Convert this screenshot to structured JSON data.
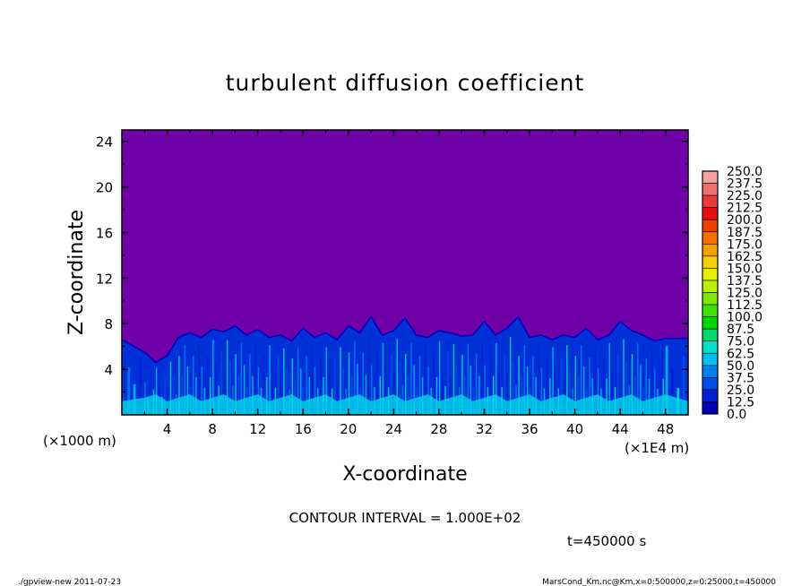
{
  "chart_data": {
    "type": "heatmap",
    "title": "turbulent diffusion coefficient",
    "xlabel": "X-coordinate",
    "ylabel": "Z-coordinate",
    "x_unit": "(×1E4 m)",
    "y_unit": "(×1000 m)",
    "xlim": [
      0,
      50
    ],
    "ylim": [
      0,
      25
    ],
    "x_ticks": [
      4,
      8,
      12,
      16,
      20,
      24,
      28,
      32,
      36,
      40,
      44,
      48
    ],
    "y_ticks": [
      4,
      8,
      12,
      16,
      20,
      24
    ],
    "contour_note": "CONTOUR INTERVAL = 1.000E+02",
    "time_label": "t=450000 s",
    "colorbar": {
      "levels": [
        "250.0",
        "237.5",
        "225.0",
        "212.5",
        "200.0",
        "187.5",
        "175.0",
        "162.5",
        "150.0",
        "137.5",
        "125.0",
        "112.5",
        "100.0",
        "87.5",
        "75.0",
        "62.5",
        "50.0",
        "37.5",
        "25.0",
        "12.5",
        "0.0"
      ],
      "colors": [
        "#f4a0a0",
        "#f07070",
        "#e83c3c",
        "#e41010",
        "#f04000",
        "#f47000",
        "#f4a000",
        "#f4d000",
        "#e8f000",
        "#b8f000",
        "#80e800",
        "#40e000",
        "#00d800",
        "#00d870",
        "#00e0c8",
        "#00c0f0",
        "#0080f0",
        "#0050e8",
        "#0020d8",
        "#0000b8",
        "#7000a8"
      ]
    },
    "background_value_color": "#7000a8",
    "boundary_layer_top": [
      [
        0,
        6.6
      ],
      [
        2,
        5.5
      ],
      [
        3,
        4.6
      ],
      [
        4,
        5.2
      ],
      [
        5,
        6.8
      ],
      [
        6,
        7.2
      ],
      [
        7,
        6.8
      ],
      [
        8,
        7.5
      ],
      [
        9,
        7.3
      ],
      [
        10,
        7.8
      ],
      [
        11,
        7.0
      ],
      [
        12,
        7.5
      ],
      [
        13,
        6.8
      ],
      [
        14,
        7.0
      ],
      [
        15,
        6.5
      ],
      [
        16,
        7.6
      ],
      [
        17,
        6.8
      ],
      [
        18,
        7.2
      ],
      [
        19,
        6.6
      ],
      [
        20,
        7.8
      ],
      [
        21,
        7.2
      ],
      [
        22,
        8.6
      ],
      [
        23,
        7.0
      ],
      [
        24,
        7.4
      ],
      [
        25,
        8.5
      ],
      [
        26,
        7.0
      ],
      [
        27,
        6.8
      ],
      [
        28,
        7.4
      ],
      [
        29,
        7.2
      ],
      [
        30,
        6.9
      ],
      [
        31,
        7.0
      ],
      [
        32,
        8.2
      ],
      [
        33,
        7.0
      ],
      [
        34,
        7.6
      ],
      [
        35,
        8.6
      ],
      [
        36,
        6.8
      ],
      [
        37,
        7.0
      ],
      [
        38,
        6.6
      ],
      [
        39,
        7.0
      ],
      [
        40,
        6.8
      ],
      [
        41,
        7.6
      ],
      [
        42,
        6.6
      ],
      [
        43,
        7.0
      ],
      [
        44,
        8.2
      ],
      [
        45,
        7.4
      ],
      [
        46,
        7.0
      ],
      [
        47,
        6.5
      ],
      [
        48,
        6.7
      ],
      [
        50,
        6.7
      ]
    ]
  },
  "footer": {
    "left": "./gpview-new 2011-07-23",
    "right": "MarsCond_Km.nc@Km,x=0:500000,z=0:25000,t=450000"
  }
}
